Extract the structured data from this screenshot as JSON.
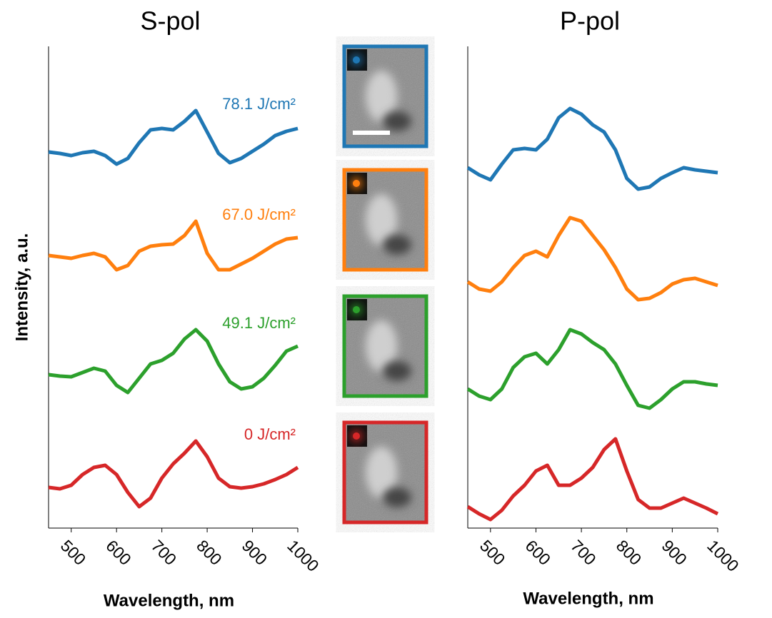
{
  "chart_data": [
    {
      "type": "line",
      "title": "S-pol",
      "xlabel": "Wavelength, nm",
      "ylabel": "Intensity, a.u.",
      "x": [
        450,
        475,
        500,
        525,
        550,
        575,
        600,
        625,
        650,
        675,
        700,
        725,
        750,
        775,
        800,
        825,
        850,
        875,
        900,
        925,
        950,
        975,
        1000
      ],
      "xlim": [
        450,
        1000
      ],
      "xticks": [
        500,
        600,
        700,
        800,
        900,
        1000
      ],
      "ylim": [
        0,
        67.5
      ],
      "series": [
        {
          "name": "78.1 J/cm²",
          "color": "#1f77b4",
          "values": [
            52.7,
            52.5,
            52.2,
            52.6,
            52.8,
            52.2,
            51.0,
            51.8,
            54.0,
            55.8,
            56.0,
            55.8,
            57.0,
            58.5,
            55.5,
            52.5,
            51.2,
            51.8,
            52.8,
            53.8,
            55.0,
            55.6,
            56.0
          ]
        },
        {
          "name": "67.0 J/cm²",
          "color": "#ff7f0e",
          "values": [
            38.2,
            38.0,
            37.8,
            38.2,
            38.5,
            38.0,
            36.2,
            36.8,
            38.8,
            39.5,
            39.7,
            39.8,
            41.0,
            43.0,
            38.5,
            36.2,
            36.2,
            37.0,
            37.8,
            38.8,
            39.8,
            40.5,
            40.7
          ]
        },
        {
          "name": "49.1 J/cm²",
          "color": "#2ca02c",
          "values": [
            21.5,
            21.3,
            21.2,
            21.8,
            22.4,
            22.0,
            20.0,
            19.0,
            21.0,
            23.0,
            23.5,
            24.5,
            26.5,
            27.8,
            26.2,
            23.0,
            20.5,
            19.5,
            19.8,
            21.0,
            22.8,
            24.8,
            25.5
          ]
        },
        {
          "name": "0 J/cm²",
          "color": "#d62728",
          "values": [
            5.7,
            5.5,
            6.0,
            7.5,
            8.5,
            8.8,
            7.5,
            5.0,
            3.0,
            4.2,
            7.0,
            9.0,
            10.5,
            12.2,
            10.0,
            7.0,
            5.8,
            5.6,
            5.8,
            6.2,
            6.8,
            7.5,
            8.5
          ]
        }
      ]
    },
    {
      "type": "line",
      "title": "P-pol",
      "xlabel": "Wavelength, nm",
      "x": [
        450,
        475,
        500,
        525,
        550,
        575,
        600,
        625,
        650,
        675,
        700,
        725,
        750,
        775,
        800,
        825,
        850,
        875,
        900,
        925,
        950,
        975,
        1000
      ],
      "xlim": [
        450,
        1000
      ],
      "xticks": [
        500,
        600,
        700,
        800,
        900,
        1000
      ],
      "ylim": [
        0,
        67.5
      ],
      "series": [
        {
          "color": "#1f77b4",
          "values": [
            50.5,
            49.5,
            48.8,
            51.0,
            53.0,
            53.2,
            53.0,
            54.5,
            57.5,
            58.8,
            58.0,
            56.5,
            55.5,
            53.0,
            49.0,
            47.5,
            47.8,
            49.0,
            49.8,
            50.5,
            50.2,
            50.0,
            49.8
          ]
        },
        {
          "color": "#ff7f0e",
          "values": [
            34.5,
            33.5,
            33.2,
            34.5,
            36.5,
            38.2,
            38.8,
            38.0,
            41.0,
            43.5,
            43.0,
            41.0,
            39.0,
            36.5,
            33.5,
            32.0,
            32.2,
            33.0,
            34.2,
            34.8,
            35.0,
            34.5,
            34.0
          ]
        },
        {
          "color": "#2ca02c",
          "values": [
            19.5,
            18.5,
            18.0,
            19.5,
            22.5,
            24.0,
            24.5,
            23.0,
            25.0,
            27.8,
            27.2,
            26.0,
            25.0,
            23.0,
            20.0,
            17.2,
            16.8,
            18.0,
            19.5,
            20.5,
            20.5,
            20.2,
            20.0
          ]
        },
        {
          "color": "#d62728",
          "values": [
            3.0,
            2.0,
            1.2,
            2.5,
            4.5,
            6.0,
            8.0,
            8.8,
            6.0,
            6.0,
            7.0,
            8.5,
            11.0,
            12.5,
            8.0,
            4.0,
            2.8,
            2.8,
            3.5,
            4.2,
            3.5,
            2.8,
            2.0
          ]
        }
      ]
    }
  ]
}
